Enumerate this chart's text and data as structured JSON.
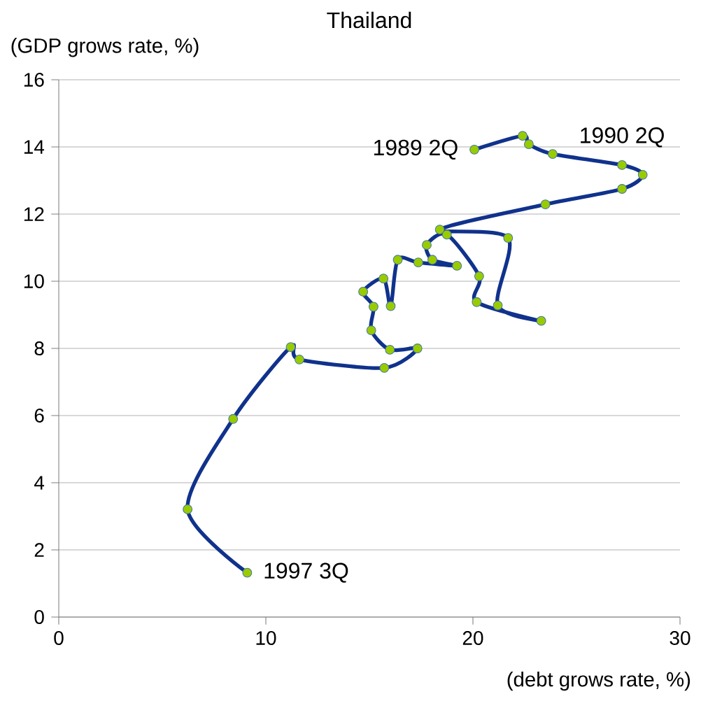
{
  "chart_data": {
    "type": "line",
    "title": "Thailand",
    "xlabel": "(debt grows rate, %)",
    "ylabel": "(GDP grows rate, %)",
    "xlim": [
      0,
      30
    ],
    "xticks": [
      0,
      10,
      20,
      30
    ],
    "ylim": [
      0,
      16
    ],
    "yticks": [
      0,
      2,
      4,
      6,
      8,
      10,
      12,
      14,
      16
    ],
    "grid": "y",
    "series": [
      {
        "color": "#10328c",
        "marker": "none",
        "line_style": "solid",
        "x": [
          20.07,
          22.4,
          22.7,
          23.85,
          27.2,
          28.2,
          27.2,
          23.5,
          18.4,
          21.7,
          21.2,
          23.3,
          20.18,
          20.3,
          18.74,
          17.77,
          18.04,
          19.23,
          17.36,
          16.37,
          16.03,
          15.68,
          14.7,
          15.2,
          15.09,
          15.99,
          17.32,
          15.72,
          11.62,
          11.2,
          8.42,
          6.22,
          9.1
        ],
        "values": [
          13.92,
          14.33,
          14.08,
          13.79,
          13.46,
          13.17,
          12.75,
          12.29,
          11.54,
          11.29,
          9.28,
          8.82,
          9.38,
          10.15,
          11.39,
          11.08,
          10.64,
          10.46,
          10.56,
          10.64,
          9.26,
          10.08,
          9.69,
          9.24,
          8.54,
          7.96,
          8.0,
          7.42,
          7.67,
          8.04,
          5.9,
          3.21,
          1.32
        ]
      },
      {
        "type": "scatter",
        "color": "#99cc00",
        "marker": "circle",
        "x": [
          20.07,
          22.4,
          22.7,
          23.85,
          27.2,
          28.2,
          27.2,
          23.5,
          18.4,
          21.7,
          21.2,
          23.3,
          20.18,
          20.3,
          18.74,
          17.77,
          18.04,
          19.23,
          17.36,
          16.37,
          16.03,
          15.68,
          14.7,
          15.2,
          15.09,
          15.99,
          17.32,
          15.72,
          11.62,
          11.2,
          8.42,
          6.22,
          9.1
        ],
        "values": [
          13.92,
          14.33,
          14.08,
          13.79,
          13.46,
          13.17,
          12.75,
          12.29,
          11.54,
          11.29,
          9.28,
          8.82,
          9.38,
          10.15,
          11.39,
          11.08,
          10.64,
          10.46,
          10.56,
          10.64,
          9.26,
          10.08,
          9.69,
          9.24,
          8.54,
          7.96,
          8.0,
          7.42,
          7.67,
          8.04,
          5.9,
          3.21,
          1.32
        ]
      }
    ],
    "annotations": [
      {
        "text": "1989 2Q",
        "x": 20.07,
        "y": 13.92
      },
      {
        "text": "1990 2Q",
        "x": 27.2,
        "y": 13.46
      },
      {
        "text": "1997 3Q",
        "x": 9.1,
        "y": 1.32
      }
    ]
  }
}
